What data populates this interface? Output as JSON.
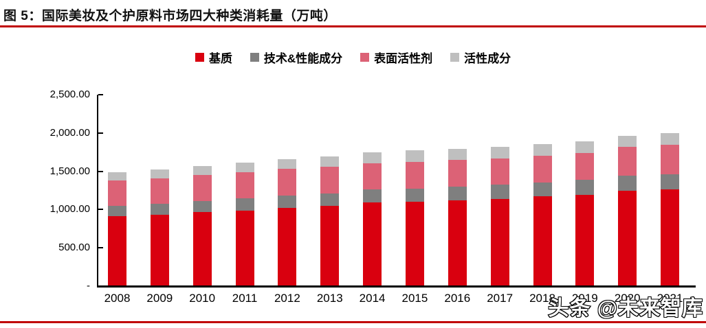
{
  "figure": {
    "title": "图 5：国际美妆及个护原料市场四大种类消耗量（万吨）",
    "watermark": "头条 @未来智库"
  },
  "colors": {
    "accent_rule": "#C00000",
    "axis": "#000000",
    "text": "#000000",
    "series_colors": [
      "#D9000F",
      "#7F7F7F",
      "#DC6276",
      "#BFBFBF"
    ]
  },
  "chart_data": {
    "type": "bar",
    "stacked": true,
    "title": "国际美妆及个护原料市场四大种类消耗量（万吨）",
    "xlabel": "",
    "ylabel": "",
    "categories": [
      "2008",
      "2009",
      "2010",
      "2011",
      "2012",
      "2013",
      "2014",
      "2015",
      "2016",
      "2017",
      "2018",
      "2019",
      "2020",
      "2021"
    ],
    "series": [
      {
        "name": "基质",
        "color": "#D9000F",
        "values": [
          910,
          935,
          965,
          990,
          1020,
          1045,
          1090,
          1105,
          1120,
          1140,
          1170,
          1195,
          1245,
          1265
        ]
      },
      {
        "name": "技术&性能成分",
        "color": "#7F7F7F",
        "values": [
          140,
          140,
          150,
          160,
          165,
          165,
          170,
          170,
          175,
          185,
          180,
          195,
          195,
          195
        ]
      },
      {
        "name": "表面活性剂",
        "color": "#DC6276",
        "values": [
          330,
          335,
          340,
          340,
          345,
          350,
          345,
          350,
          350,
          345,
          355,
          350,
          375,
          385
        ]
      },
      {
        "name": "活性成分",
        "color": "#BFBFBF",
        "values": [
          110,
          110,
          110,
          120,
          125,
          135,
          140,
          145,
          145,
          150,
          150,
          155,
          145,
          155
        ]
      }
    ],
    "totals": [
      1490,
      1520,
      1565,
      1610,
      1655,
      1695,
      1745,
      1770,
      1790,
      1820,
      1855,
      1895,
      1960,
      2000
    ],
    "ylim": [
      0,
      2500
    ],
    "yticks": [
      0,
      500,
      1000,
      1500,
      2000,
      2500
    ],
    "ytick_labels": [
      "-",
      "500.00",
      "1,000.00",
      "1,500.00",
      "2,000.00",
      "2,500.00"
    ],
    "legend_position": "top-center",
    "grid": false
  }
}
